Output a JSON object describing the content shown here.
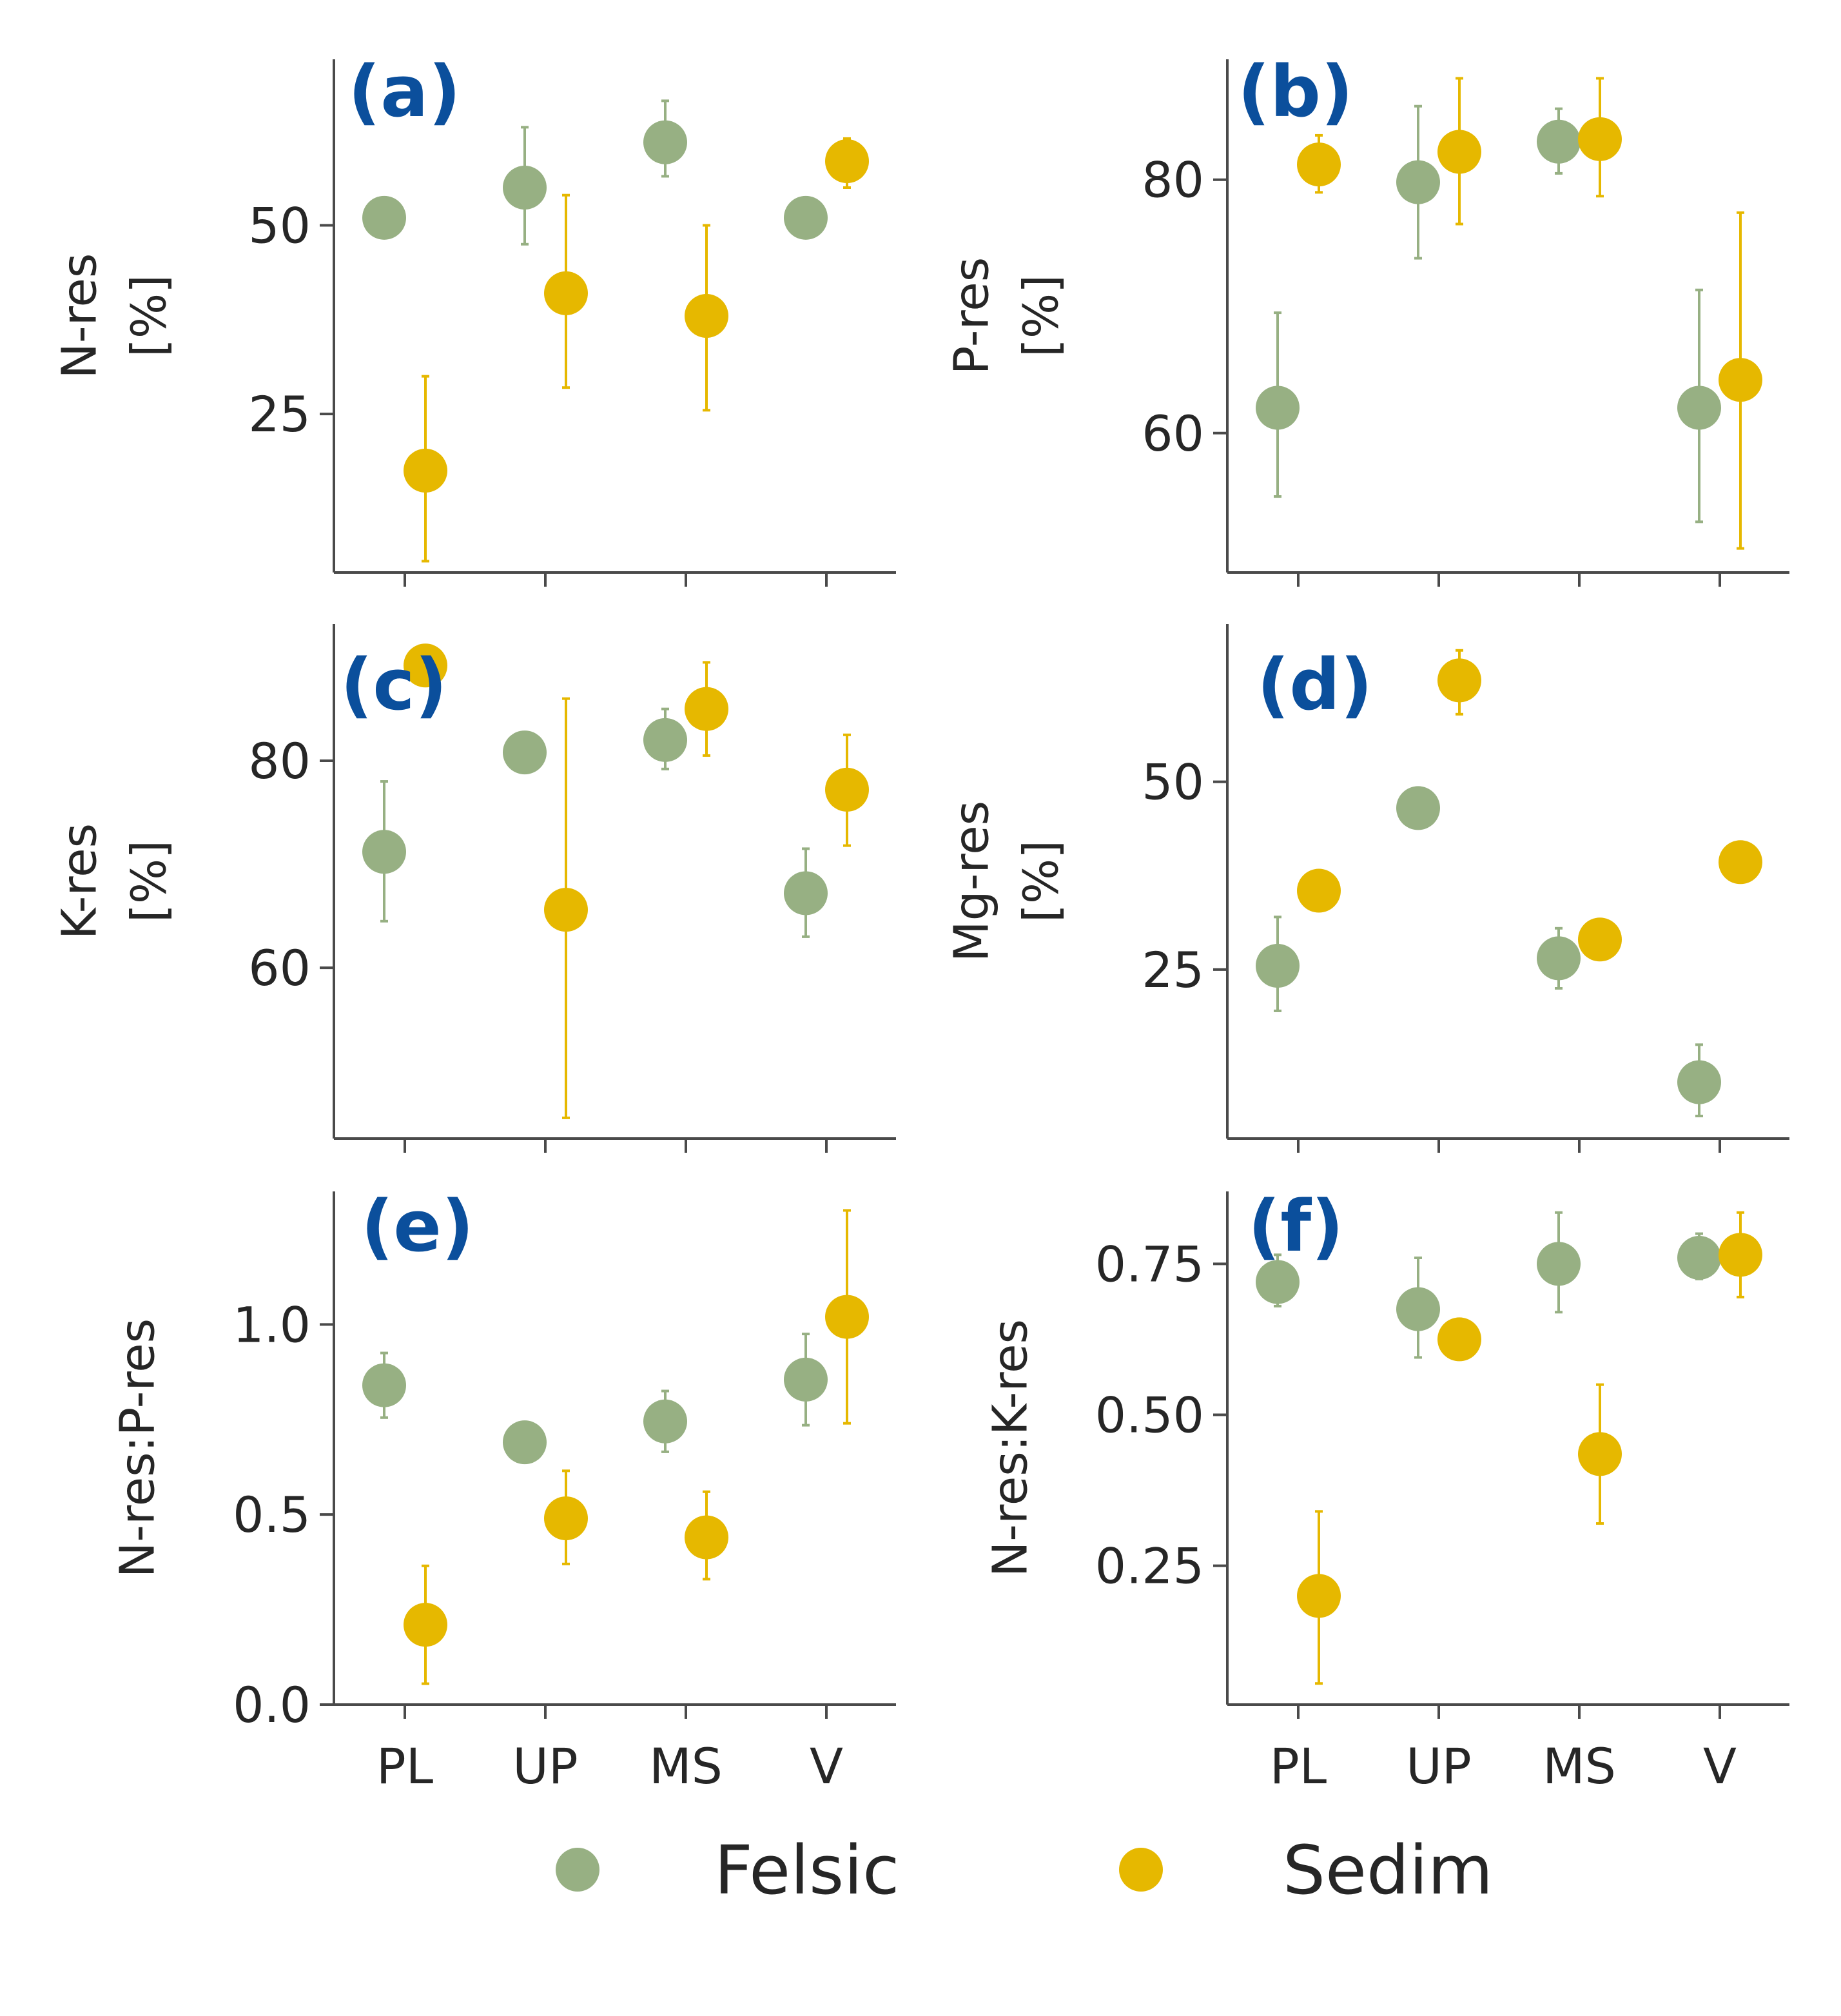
{
  "colors": {
    "Felsic": "#97b083",
    "Sedim": "#e6b800",
    "panel_label": "#0b4f9c"
  },
  "legend": {
    "items": [
      {
        "name": "Felsic",
        "color": "#97b083"
      },
      {
        "name": "Sedim",
        "color": "#e6b800"
      }
    ]
  },
  "chart_data": [
    {
      "type": "scatter",
      "panel": "(a)",
      "ylabel": [
        "N-res",
        "[%]"
      ],
      "categories": [
        "PL",
        "UP",
        "MS",
        "V"
      ],
      "show_xticklabels": false,
      "ylim": [
        4,
        72
      ],
      "yticks": [
        25,
        50
      ],
      "series": [
        {
          "name": "Felsic",
          "values": [
            51,
            55,
            61,
            51
          ],
          "err_low": [
            null,
            47.5,
            56.5,
            null
          ],
          "err_high": [
            null,
            63,
            66.5,
            null
          ]
        },
        {
          "name": "Sedim",
          "values": [
            17.5,
            41,
            38,
            58.5
          ],
          "err_low": [
            5.5,
            28.5,
            25.5,
            55
          ],
          "err_high": [
            30,
            54,
            50,
            61.5
          ]
        }
      ]
    },
    {
      "type": "scatter",
      "panel": "(b)",
      "ylabel": [
        "P-res",
        "[%]"
      ],
      "categories": [
        "PL",
        "UP",
        "MS",
        "V"
      ],
      "show_xticklabels": false,
      "ylim": [
        49,
        89.5
      ],
      "yticks": [
        60,
        80
      ],
      "series": [
        {
          "name": "Felsic",
          "values": [
            62,
            79.8,
            83,
            62
          ],
          "err_low": [
            55,
            73.8,
            80.5,
            53
          ],
          "err_high": [
            69.5,
            85.8,
            85.6,
            71.3
          ]
        },
        {
          "name": "Sedim",
          "values": [
            81.2,
            82.2,
            83.2,
            64.2
          ],
          "err_low": [
            79,
            76.5,
            78.7,
            50.9
          ],
          "err_high": [
            83.5,
            88,
            88,
            77.4
          ]
        }
      ]
    },
    {
      "type": "scatter",
      "panel": "(c)",
      "ylabel": [
        "K-res",
        "[%]"
      ],
      "categories": [
        "PL",
        "UP",
        "MS",
        "V"
      ],
      "show_xticklabels": false,
      "ylim": [
        43.5,
        93.2
      ],
      "yticks": [
        60,
        80
      ],
      "series": [
        {
          "name": "Felsic",
          "values": [
            71.2,
            80.8,
            82,
            67.2
          ],
          "err_low": [
            64.5,
            null,
            79.2,
            63
          ],
          "err_high": [
            78,
            null,
            85,
            71.5
          ]
        },
        {
          "name": "Sedim",
          "values": [
            89.2,
            65.6,
            85,
            77.2
          ],
          "err_low": [
            null,
            45.5,
            80.5,
            71.8
          ],
          "err_high": [
            null,
            86,
            89.5,
            82.5
          ]
        }
      ]
    },
    {
      "type": "scatter",
      "panel": "(d)",
      "ylabel": [
        "Mg-res",
        "[%]"
      ],
      "categories": [
        "PL",
        "UP",
        "MS",
        "V"
      ],
      "show_xticklabels": false,
      "ylim": [
        2.5,
        71
      ],
      "yticks": [
        25,
        50
      ],
      "series": [
        {
          "name": "Felsic",
          "values": [
            25.5,
            46.5,
            26.5,
            10
          ],
          "err_low": [
            19.5,
            null,
            22.5,
            5.5
          ],
          "err_high": [
            32,
            null,
            30.5,
            15
          ]
        },
        {
          "name": "Sedim",
          "values": [
            35.5,
            63.5,
            29,
            39.3
          ],
          "err_low": [
            null,
            59,
            null,
            null
          ],
          "err_high": [
            null,
            67.5,
            null,
            null
          ]
        }
      ]
    },
    {
      "type": "scatter",
      "panel": "(e)",
      "ylabel": [
        "N-res:P-res"
      ],
      "categories": [
        "PL",
        "UP",
        "MS",
        "V"
      ],
      "show_xticklabels": true,
      "ylim": [
        0,
        1.35
      ],
      "yticks": [
        0.0,
        0.5,
        1.0
      ],
      "ytick_labels": [
        "0.0",
        "0.5",
        "1.0"
      ],
      "series": [
        {
          "name": "Felsic",
          "values": [
            0.84,
            0.69,
            0.745,
            0.855
          ],
          "err_low": [
            0.755,
            null,
            0.665,
            0.735
          ],
          "err_high": [
            0.925,
            null,
            0.825,
            0.975
          ]
        },
        {
          "name": "Sedim",
          "values": [
            0.21,
            0.49,
            0.44,
            1.02
          ],
          "err_low": [
            0.055,
            0.37,
            0.33,
            0.74
          ],
          "err_high": [
            0.365,
            0.615,
            0.56,
            1.3
          ]
        }
      ]
    },
    {
      "type": "scatter",
      "panel": "(f)",
      "ylabel": [
        "N-res:K-res"
      ],
      "categories": [
        "PL",
        "UP",
        "MS",
        "V"
      ],
      "show_xticklabels": true,
      "ylim": [
        0.02,
        0.87
      ],
      "yticks": [
        0.25,
        0.5,
        0.75
      ],
      "ytick_labels": [
        "0.25",
        "0.50",
        "0.75"
      ],
      "series": [
        {
          "name": "Felsic",
          "values": [
            0.72,
            0.675,
            0.75,
            0.76
          ],
          "err_low": [
            0.68,
            0.595,
            0.67,
            0.725
          ],
          "err_high": [
            0.765,
            0.76,
            0.835,
            0.8
          ]
        },
        {
          "name": "Sedim",
          "values": [
            0.2,
            0.625,
            0.435,
            0.765
          ],
          "err_low": [
            0.055,
            null,
            0.32,
            0.695
          ],
          "err_high": [
            0.34,
            null,
            0.55,
            0.835
          ]
        }
      ]
    }
  ]
}
